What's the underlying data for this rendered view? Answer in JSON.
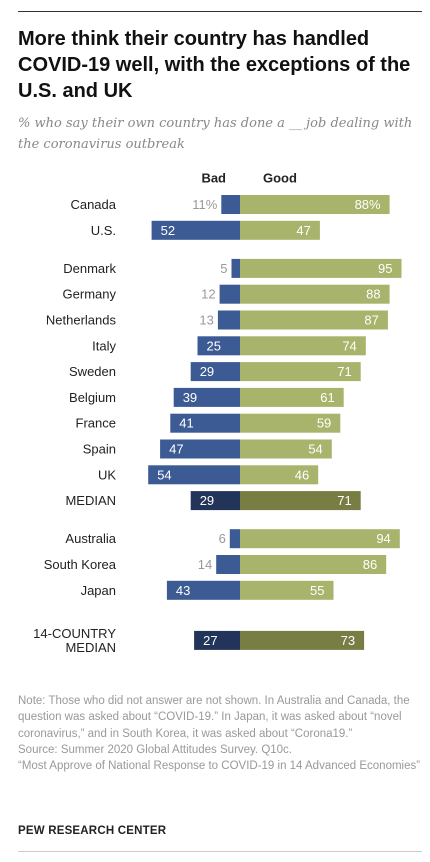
{
  "header": {
    "title": "More think their country has handled COVID-19 well, with the exceptions of the U.S. and UK",
    "subtitle": "% who say their own country has done a __ job dealing with the coronavirus outbreak"
  },
  "chart_data": {
    "type": "bar",
    "orientation": "diverging-horizontal",
    "column_headers": {
      "bad": "Bad",
      "good": "Good"
    },
    "percent_suffix_rows": [
      "Canada"
    ],
    "groups": [
      {
        "rows": [
          {
            "label": "Canada",
            "bad": 11,
            "good": 88
          },
          {
            "label": "U.S.",
            "bad": 52,
            "good": 47
          }
        ]
      },
      {
        "rows": [
          {
            "label": "Denmark",
            "bad": 5,
            "good": 95
          },
          {
            "label": "Germany",
            "bad": 12,
            "good": 88
          },
          {
            "label": "Netherlands",
            "bad": 13,
            "good": 87
          },
          {
            "label": "Italy",
            "bad": 25,
            "good": 74
          },
          {
            "label": "Sweden",
            "bad": 29,
            "good": 71
          },
          {
            "label": "Belgium",
            "bad": 39,
            "good": 61
          },
          {
            "label": "France",
            "bad": 41,
            "good": 59
          },
          {
            "label": "Spain",
            "bad": 47,
            "good": 54
          },
          {
            "label": "UK",
            "bad": 54,
            "good": 46
          },
          {
            "label": "MEDIAN",
            "bad": 29,
            "good": 71,
            "median": true
          }
        ]
      },
      {
        "rows": [
          {
            "label": "Australia",
            "bad": 6,
            "good": 94
          },
          {
            "label": "South Korea",
            "bad": 14,
            "good": 86
          },
          {
            "label": "Japan",
            "bad": 43,
            "good": 55
          }
        ]
      },
      {
        "rows": [
          {
            "label": "14-COUNTRY\nMEDIAN",
            "bad": 27,
            "good": 73,
            "median": true
          }
        ]
      }
    ],
    "colors": {
      "bad": "#3c5a94",
      "good": "#a8b36b",
      "bad_median": "#23345b",
      "good_median": "#777d43",
      "light_label": "#999999"
    }
  },
  "notes": {
    "note": "Note: Those who did not answer are not shown. In Australia and Canada, the question was asked about “COVID-19.” In Japan, it was asked about “novel coronavirus,” and in South Korea, it was asked about “Corona19.”",
    "source": "Source: Summer 2020 Global Attitudes Survey. Q10c.",
    "report": "“Most Approve of National Response to COVID-19 in 14 Advanced Economies”"
  },
  "footer": {
    "org": "PEW RESEARCH CENTER"
  }
}
